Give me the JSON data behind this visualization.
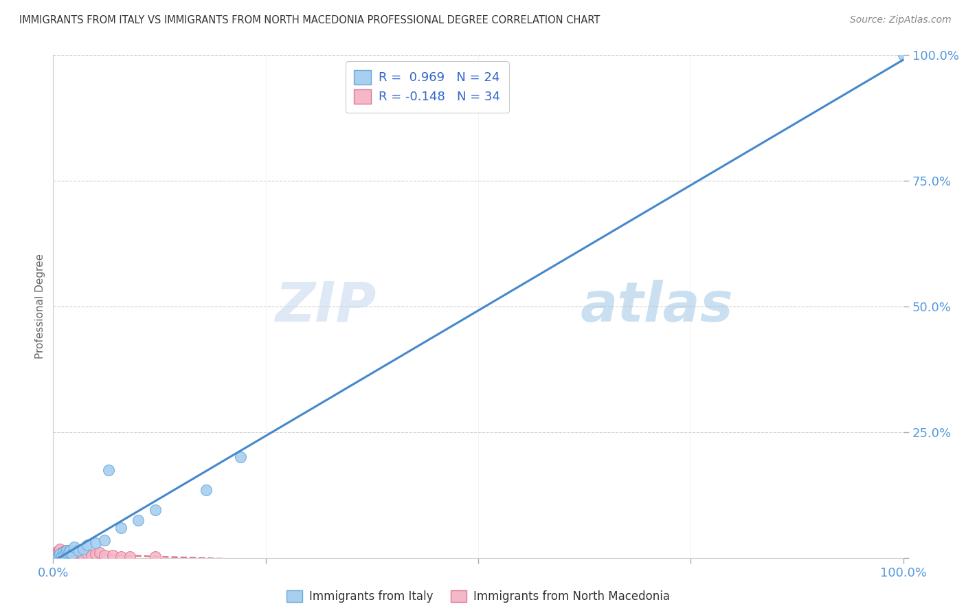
{
  "title": "IMMIGRANTS FROM ITALY VS IMMIGRANTS FROM NORTH MACEDONIA PROFESSIONAL DEGREE CORRELATION CHART",
  "source": "Source: ZipAtlas.com",
  "ylabel": "Professional Degree",
  "xlim": [
    0,
    1.0
  ],
  "ylim": [
    0,
    1.0
  ],
  "italy_color": "#A8CFF0",
  "italy_edge_color": "#6AAAD8",
  "italy_line_color": "#4488CC",
  "north_mac_color": "#F5B8C8",
  "north_mac_edge_color": "#E07890",
  "north_mac_line_color": "#E07890",
  "watermark_zip": "ZIP",
  "watermark_atlas": "atlas",
  "legend_R_italy": "R =  0.969",
  "legend_N_italy": "N = 24",
  "legend_R_mac": "R = -0.148",
  "legend_N_mac": "N = 34",
  "italy_x": [
    0.005,
    0.007,
    0.008,
    0.01,
    0.012,
    0.013,
    0.015,
    0.016,
    0.018,
    0.02,
    0.022,
    0.025,
    0.03,
    0.035,
    0.04,
    0.05,
    0.06,
    0.065,
    0.08,
    0.1,
    0.12,
    0.18,
    0.22,
    1.0
  ],
  "italy_y": [
    0.003,
    0.005,
    0.008,
    0.005,
    0.01,
    0.005,
    0.01,
    0.015,
    0.012,
    0.015,
    0.008,
    0.022,
    0.015,
    0.018,
    0.025,
    0.03,
    0.035,
    0.175,
    0.06,
    0.075,
    0.095,
    0.135,
    0.2,
    1.0
  ],
  "mac_x": [
    0.001,
    0.002,
    0.003,
    0.004,
    0.005,
    0.006,
    0.007,
    0.008,
    0.009,
    0.01,
    0.011,
    0.012,
    0.013,
    0.014,
    0.015,
    0.016,
    0.017,
    0.018,
    0.019,
    0.02,
    0.022,
    0.025,
    0.027,
    0.03,
    0.035,
    0.04,
    0.045,
    0.05,
    0.055,
    0.06,
    0.07,
    0.08,
    0.09,
    0.12
  ],
  "mac_y": [
    0.005,
    0.01,
    0.008,
    0.005,
    0.0,
    0.005,
    0.015,
    0.018,
    0.0,
    0.01,
    0.005,
    0.012,
    0.008,
    0.015,
    0.01,
    0.005,
    0.012,
    0.015,
    0.01,
    0.005,
    0.01,
    0.008,
    0.005,
    0.01,
    0.005,
    0.008,
    0.005,
    0.008,
    0.01,
    0.005,
    0.005,
    0.003,
    0.003,
    0.002
  ],
  "background_color": "#FFFFFF",
  "grid_color": "#D0D0D0",
  "tick_color": "#5599DD",
  "label_color": "#666666"
}
